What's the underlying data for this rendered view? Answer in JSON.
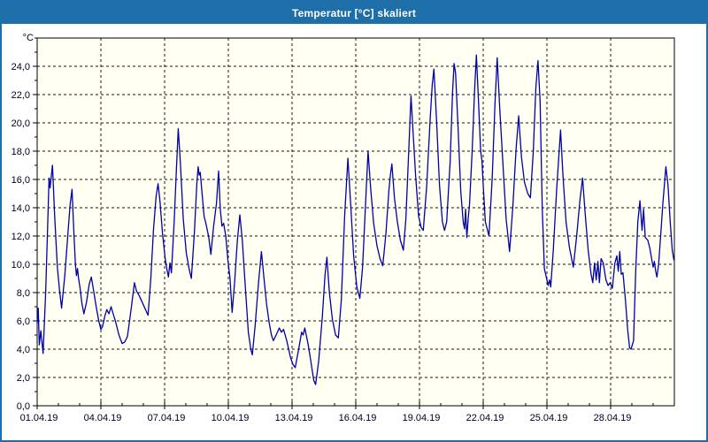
{
  "window": {
    "title": "Temperatur [°C] skaliert",
    "title_bar_color": "#1e6fa9",
    "border_color": "#1e6fa9"
  },
  "chart_data": {
    "type": "line",
    "title": "Temperatur [°C] skaliert",
    "unit_label": "°C",
    "xlabel": "",
    "ylabel": "°C",
    "grid": "dashed",
    "legend": "none",
    "plot_bg_color": "#fffff2",
    "line_color": "#0000a8",
    "grid_color": "#1a1a1a",
    "label_color": "#000020",
    "x_range_days": [
      0,
      30
    ],
    "ylim": [
      0,
      26
    ],
    "x_major_tick_days": [
      0,
      3,
      6,
      9,
      12,
      15,
      18,
      21,
      24,
      27
    ],
    "x_tick_labels": [
      "01.04.19",
      "04.04.19",
      "07.04.19",
      "10.04.19",
      "13.04.19",
      "16.04.19",
      "19.04.19",
      "22.04.19",
      "25.04.19",
      "28.04.19"
    ],
    "x_minor_tick_step_days": 1,
    "y_major_ticks": [
      0,
      2,
      4,
      6,
      8,
      10,
      12,
      14,
      16,
      18,
      20,
      22,
      24
    ],
    "y_tick_labels": [
      "0,0",
      "2,0",
      "4,0",
      "6,0",
      "8,0",
      "10,0",
      "12,0",
      "14,0",
      "16,0",
      "18,0",
      "20,0",
      "22,0",
      "24,0"
    ],
    "y_minor_tick_step": 1,
    "series": [
      {
        "name": "Temperatur",
        "points": [
          [
            0.0,
            5.8
          ],
          [
            0.05,
            6.9
          ],
          [
            0.1,
            4.3
          ],
          [
            0.17,
            5.3
          ],
          [
            0.28,
            3.7
          ],
          [
            0.4,
            8.0
          ],
          [
            0.5,
            13.0
          ],
          [
            0.56,
            16.1
          ],
          [
            0.61,
            15.4
          ],
          [
            0.72,
            17.0
          ],
          [
            0.82,
            13.5
          ],
          [
            0.95,
            9.8
          ],
          [
            1.05,
            8.2
          ],
          [
            1.15,
            6.9
          ],
          [
            1.3,
            9.2
          ],
          [
            1.45,
            12.2
          ],
          [
            1.55,
            14.2
          ],
          [
            1.64,
            15.3
          ],
          [
            1.72,
            12.5
          ],
          [
            1.8,
            10.0
          ],
          [
            1.85,
            9.2
          ],
          [
            1.9,
            9.7
          ],
          [
            1.95,
            9.0
          ],
          [
            2.02,
            8.3
          ],
          [
            2.1,
            7.3
          ],
          [
            2.2,
            6.5
          ],
          [
            2.32,
            7.3
          ],
          [
            2.45,
            8.6
          ],
          [
            2.55,
            9.1
          ],
          [
            2.65,
            8.2
          ],
          [
            2.78,
            7.0
          ],
          [
            2.9,
            6.0
          ],
          [
            3.0,
            5.4
          ],
          [
            3.08,
            5.6
          ],
          [
            3.18,
            6.3
          ],
          [
            3.28,
            6.8
          ],
          [
            3.38,
            6.5
          ],
          [
            3.48,
            7.0
          ],
          [
            3.58,
            6.5
          ],
          [
            3.7,
            5.9
          ],
          [
            3.85,
            5.0
          ],
          [
            4.0,
            4.4
          ],
          [
            4.12,
            4.5
          ],
          [
            4.25,
            4.9
          ],
          [
            4.42,
            6.8
          ],
          [
            4.58,
            8.7
          ],
          [
            4.68,
            8.1
          ],
          [
            4.8,
            7.8
          ],
          [
            4.95,
            7.3
          ],
          [
            5.1,
            6.8
          ],
          [
            5.22,
            6.4
          ],
          [
            5.35,
            9.0
          ],
          [
            5.48,
            12.5
          ],
          [
            5.6,
            14.8
          ],
          [
            5.69,
            15.7
          ],
          [
            5.78,
            14.5
          ],
          [
            5.9,
            12.2
          ],
          [
            6.02,
            10.5
          ],
          [
            6.1,
            9.7
          ],
          [
            6.18,
            9.1
          ],
          [
            6.25,
            10.1
          ],
          [
            6.32,
            9.4
          ],
          [
            6.45,
            13.0
          ],
          [
            6.56,
            16.8
          ],
          [
            6.64,
            19.6
          ],
          [
            6.74,
            17.2
          ],
          [
            6.88,
            13.2
          ],
          [
            7.02,
            10.8
          ],
          [
            7.15,
            9.7
          ],
          [
            7.26,
            9.0
          ],
          [
            7.4,
            12.2
          ],
          [
            7.52,
            15.8
          ],
          [
            7.58,
            16.9
          ],
          [
            7.63,
            16.3
          ],
          [
            7.68,
            16.5
          ],
          [
            7.76,
            15.1
          ],
          [
            7.86,
            13.4
          ],
          [
            7.96,
            12.8
          ],
          [
            8.08,
            11.9
          ],
          [
            8.18,
            10.7
          ],
          [
            8.3,
            12.6
          ],
          [
            8.44,
            14.3
          ],
          [
            8.54,
            16.6
          ],
          [
            8.62,
            13.9
          ],
          [
            8.7,
            12.7
          ],
          [
            8.78,
            12.9
          ],
          [
            8.88,
            12.0
          ],
          [
            8.98,
            10.3
          ],
          [
            9.08,
            9.0
          ],
          [
            9.18,
            6.6
          ],
          [
            9.3,
            8.8
          ],
          [
            9.42,
            11.6
          ],
          [
            9.54,
            13.5
          ],
          [
            9.66,
            11.7
          ],
          [
            9.8,
            8.4
          ],
          [
            9.94,
            5.2
          ],
          [
            10.06,
            4.0
          ],
          [
            10.13,
            3.6
          ],
          [
            10.26,
            5.6
          ],
          [
            10.42,
            8.7
          ],
          [
            10.56,
            10.9
          ],
          [
            10.68,
            9.0
          ],
          [
            10.8,
            7.2
          ],
          [
            10.92,
            5.9
          ],
          [
            11.03,
            5.0
          ],
          [
            11.12,
            4.6
          ],
          [
            11.25,
            5.0
          ],
          [
            11.4,
            5.5
          ],
          [
            11.5,
            5.2
          ],
          [
            11.6,
            5.4
          ],
          [
            11.75,
            4.6
          ],
          [
            11.93,
            3.4
          ],
          [
            12.05,
            2.9
          ],
          [
            12.15,
            2.7
          ],
          [
            12.3,
            3.9
          ],
          [
            12.45,
            5.2
          ],
          [
            12.52,
            5.0
          ],
          [
            12.6,
            5.5
          ],
          [
            12.75,
            4.4
          ],
          [
            12.88,
            3.2
          ],
          [
            13.02,
            1.8
          ],
          [
            13.11,
            1.5
          ],
          [
            13.25,
            3.1
          ],
          [
            13.42,
            6.2
          ],
          [
            13.55,
            9.2
          ],
          [
            13.64,
            10.5
          ],
          [
            13.76,
            8.0
          ],
          [
            13.9,
            6.1
          ],
          [
            14.05,
            5.0
          ],
          [
            14.18,
            4.8
          ],
          [
            14.32,
            7.5
          ],
          [
            14.48,
            13.5
          ],
          [
            14.63,
            17.5
          ],
          [
            14.76,
            14.3
          ],
          [
            14.9,
            10.6
          ],
          [
            15.05,
            8.4
          ],
          [
            15.19,
            7.6
          ],
          [
            15.32,
            9.8
          ],
          [
            15.46,
            14.2
          ],
          [
            15.58,
            18.0
          ],
          [
            15.7,
            15.4
          ],
          [
            15.84,
            12.9
          ],
          [
            16.0,
            11.3
          ],
          [
            16.14,
            10.4
          ],
          [
            16.27,
            9.9
          ],
          [
            16.42,
            12.2
          ],
          [
            16.56,
            15.2
          ],
          [
            16.63,
            16.3
          ],
          [
            16.7,
            17.1
          ],
          [
            16.82,
            14.7
          ],
          [
            16.96,
            13.0
          ],
          [
            17.1,
            11.7
          ],
          [
            17.24,
            11.0
          ],
          [
            17.36,
            13.2
          ],
          [
            17.48,
            17.5
          ],
          [
            17.6,
            21.9
          ],
          [
            17.7,
            19.3
          ],
          [
            17.82,
            16.2
          ],
          [
            17.96,
            13.4
          ],
          [
            18.08,
            12.6
          ],
          [
            18.18,
            12.4
          ],
          [
            18.34,
            15.6
          ],
          [
            18.5,
            20.2
          ],
          [
            18.6,
            22.7
          ],
          [
            18.68,
            23.8
          ],
          [
            18.8,
            20.3
          ],
          [
            18.94,
            15.6
          ],
          [
            19.08,
            13.0
          ],
          [
            19.18,
            12.4
          ],
          [
            19.28,
            13.0
          ],
          [
            19.44,
            17.2
          ],
          [
            19.56,
            22.2
          ],
          [
            19.63,
            24.2
          ],
          [
            19.7,
            23.5
          ],
          [
            19.82,
            19.5
          ],
          [
            19.94,
            15.2
          ],
          [
            20.06,
            13.0
          ],
          [
            20.12,
            12.5
          ],
          [
            20.17,
            13.9
          ],
          [
            20.23,
            11.9
          ],
          [
            20.29,
            13.2
          ],
          [
            20.36,
            14.3
          ],
          [
            20.48,
            18.0
          ],
          [
            20.6,
            22.5
          ],
          [
            20.68,
            24.8
          ],
          [
            20.78,
            21.5
          ],
          [
            20.88,
            18.0
          ],
          [
            20.94,
            17.3
          ],
          [
            21.0,
            15.6
          ],
          [
            21.1,
            13.0
          ],
          [
            21.17,
            12.6
          ],
          [
            21.27,
            12.0
          ],
          [
            21.42,
            16.0
          ],
          [
            21.56,
            21.5
          ],
          [
            21.66,
            24.6
          ],
          [
            21.78,
            21.0
          ],
          [
            21.92,
            17.3
          ],
          [
            22.08,
            13.2
          ],
          [
            22.24,
            10.9
          ],
          [
            22.4,
            14.2
          ],
          [
            22.55,
            18.2
          ],
          [
            22.67,
            20.5
          ],
          [
            22.8,
            17.6
          ],
          [
            22.94,
            15.8
          ],
          [
            23.1,
            15.0
          ],
          [
            23.22,
            14.7
          ],
          [
            23.36,
            18.0
          ],
          [
            23.48,
            22.5
          ],
          [
            23.58,
            24.4
          ],
          [
            23.68,
            21.5
          ],
          [
            23.78,
            14.0
          ],
          [
            23.88,
            9.7
          ],
          [
            24.0,
            8.9
          ],
          [
            24.06,
            8.5
          ],
          [
            24.12,
            8.9
          ],
          [
            24.18,
            8.4
          ],
          [
            24.3,
            11.0
          ],
          [
            24.46,
            15.3
          ],
          [
            24.64,
            19.5
          ],
          [
            24.76,
            16.2
          ],
          [
            24.9,
            13.0
          ],
          [
            25.06,
            11.2
          ],
          [
            25.24,
            9.8
          ],
          [
            25.4,
            12.0
          ],
          [
            25.56,
            14.6
          ],
          [
            25.68,
            16.1
          ],
          [
            25.8,
            13.6
          ],
          [
            25.94,
            11.0
          ],
          [
            26.08,
            9.3
          ],
          [
            26.16,
            8.7
          ],
          [
            26.24,
            10.1
          ],
          [
            26.32,
            8.9
          ],
          [
            26.4,
            10.2
          ],
          [
            26.47,
            8.7
          ],
          [
            26.55,
            10.4
          ],
          [
            26.65,
            10.1
          ],
          [
            26.78,
            8.9
          ],
          [
            26.88,
            8.5
          ],
          [
            26.98,
            8.7
          ],
          [
            27.08,
            8.3
          ],
          [
            27.2,
            10.1
          ],
          [
            27.29,
            10.6
          ],
          [
            27.36,
            9.5
          ],
          [
            27.43,
            10.9
          ],
          [
            27.5,
            9.3
          ],
          [
            27.58,
            9.4
          ],
          [
            27.7,
            7.4
          ],
          [
            27.8,
            5.4
          ],
          [
            27.89,
            4.1
          ],
          [
            27.96,
            4.0
          ],
          [
            28.08,
            4.6
          ],
          [
            28.18,
            9.5
          ],
          [
            28.28,
            13.0
          ],
          [
            28.38,
            14.5
          ],
          [
            28.48,
            12.4
          ],
          [
            28.55,
            13.9
          ],
          [
            28.63,
            11.9
          ],
          [
            28.75,
            11.7
          ],
          [
            28.85,
            11.1
          ],
          [
            28.93,
            10.4
          ],
          [
            29.0,
            9.8
          ],
          [
            29.06,
            10.2
          ],
          [
            29.12,
            9.5
          ],
          [
            29.18,
            9.1
          ],
          [
            29.26,
            10.0
          ],
          [
            29.36,
            12.1
          ],
          [
            29.46,
            14.3
          ],
          [
            29.6,
            16.9
          ],
          [
            29.7,
            15.6
          ],
          [
            29.8,
            13.1
          ],
          [
            29.9,
            11.0
          ],
          [
            29.98,
            10.3
          ]
        ]
      }
    ]
  }
}
